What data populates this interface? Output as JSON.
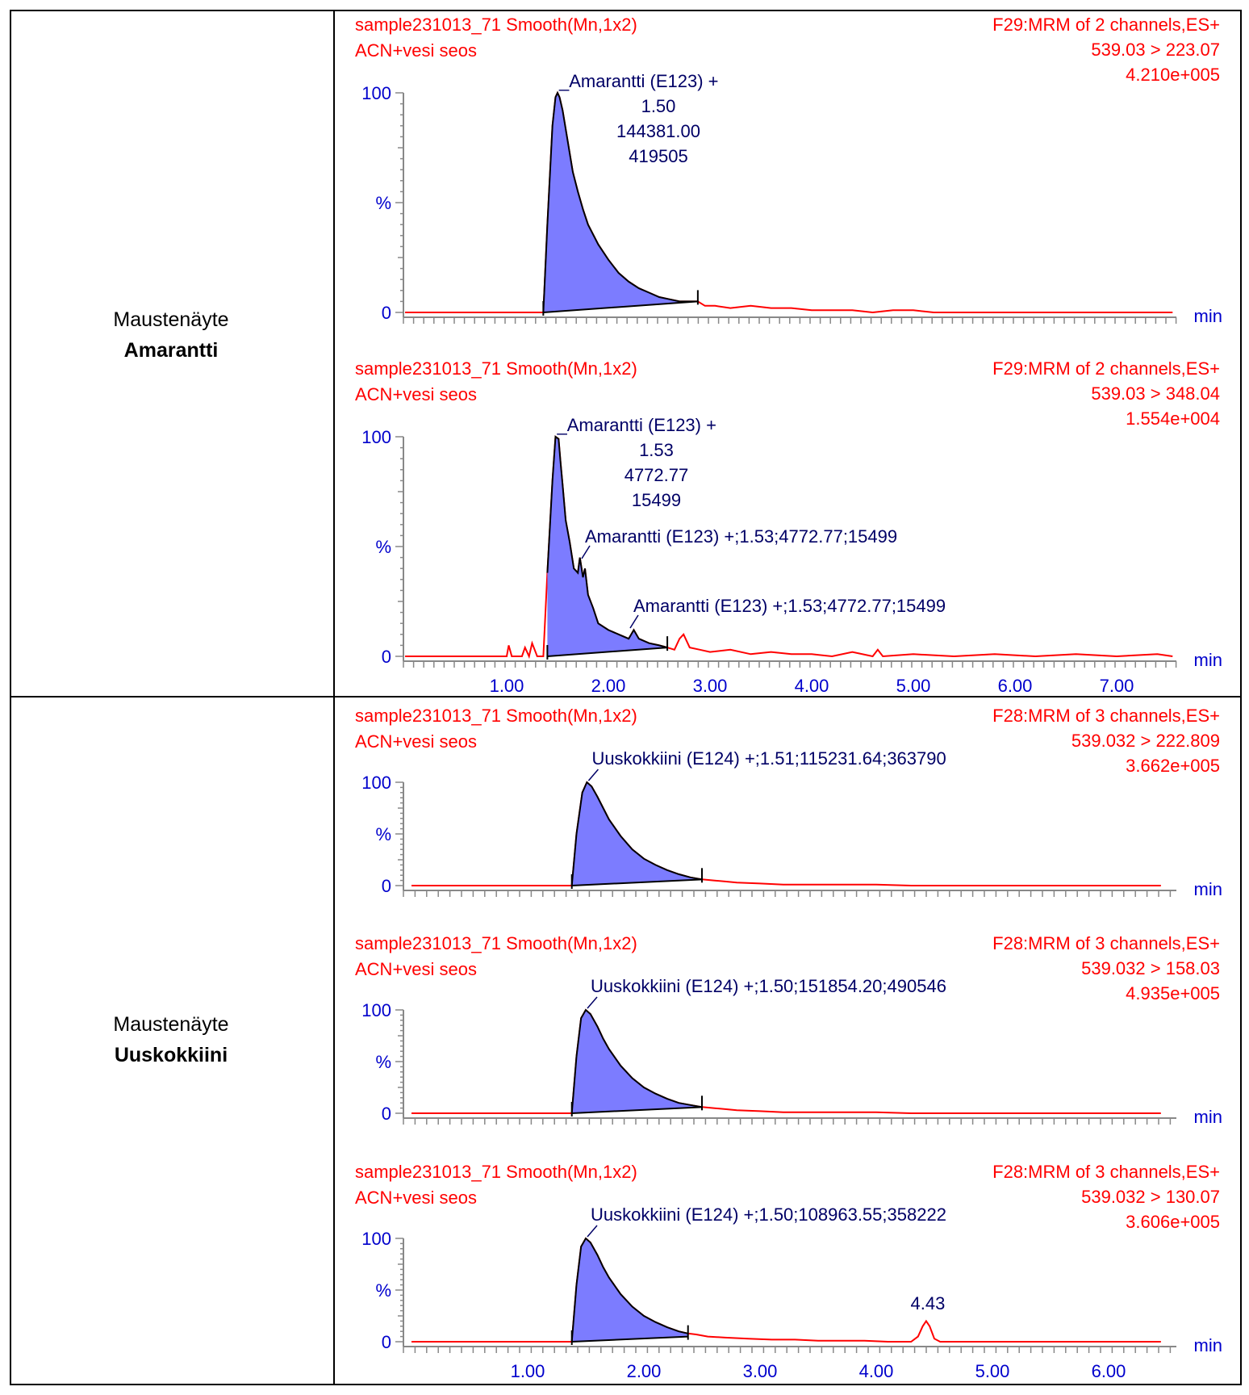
{
  "rows": [
    {
      "line1": "Maustenäyte",
      "line2": "Amarantti"
    },
    {
      "line1": "Maustenäyte",
      "line2": "Uuskokkiini"
    }
  ],
  "chart_data": [
    {
      "type": "line",
      "title": "sample231013_71 Smooth(Mn,1x2)",
      "subtitle": "ACN+vesi seos",
      "function": "F29:MRM of 2 channels,ES+",
      "transition": "539.03 > 223.07",
      "intensity": "4.210e+005",
      "ylabel": "%",
      "yticks": [
        "0",
        "100"
      ],
      "xlabel": "min",
      "xlim": [
        0,
        7.6
      ],
      "ylim": [
        0,
        100
      ],
      "xticks": [],
      "peak_label": [
        "_Amarantti (E123) +",
        "1.50",
        "144381.00",
        "419505"
      ],
      "extra_labels": [],
      "peak_area": {
        "start": 1.36,
        "end": 2.88,
        "base_start": 0,
        "base_end": 5
      },
      "series": [
        {
          "x": [
            0,
            1.3,
            1.36,
            1.4,
            1.45,
            1.48,
            1.5,
            1.52,
            1.55,
            1.6,
            1.65,
            1.7,
            1.75,
            1.8,
            1.9,
            2.0,
            2.1,
            2.2,
            2.3,
            2.4,
            2.5,
            2.6,
            2.7,
            2.8,
            2.88,
            2.95,
            3.05,
            3.2,
            3.4,
            3.6,
            3.8,
            4.0,
            4.2,
            4.4,
            4.6,
            4.8,
            5.0,
            5.2,
            5.4,
            5.6,
            6.0,
            6.4,
            6.8,
            7.2,
            7.55
          ],
          "y": [
            0,
            0,
            0,
            40,
            85,
            98,
            100,
            98,
            92,
            78,
            64,
            55,
            47,
            40,
            31,
            24,
            18,
            14,
            11,
            9,
            7,
            6,
            5,
            5,
            5,
            3,
            3,
            2,
            3,
            2,
            2,
            1,
            1,
            1,
            0,
            1,
            1,
            0,
            0,
            0,
            0,
            0,
            0,
            0,
            0
          ]
        }
      ]
    },
    {
      "type": "line",
      "title": "sample231013_71 Smooth(Mn,1x2)",
      "subtitle": "ACN+vesi seos",
      "function": "F29:MRM of 2 channels,ES+",
      "transition": "539.03 > 348.04",
      "intensity": "1.554e+004",
      "ylabel": "%",
      "yticks": [
        "0",
        "100"
      ],
      "xlabel": "min",
      "xlim": [
        0,
        7.6
      ],
      "ylim": [
        0,
        100
      ],
      "xticks": [
        "1.00",
        "2.00",
        "3.00",
        "4.00",
        "5.00",
        "6.00",
        "7.00"
      ],
      "peak_label": [
        "_Amarantti (E123) +",
        "1.53",
        "4772.77",
        "15499"
      ],
      "extra_labels": [
        "Amarantti (E123) +;1.53;4772.77;15499",
        "Amarantti (E123) +;1.53;4772.77;15499"
      ],
      "peak_area": {
        "start": 1.4,
        "end": 2.58,
        "base_start": 0,
        "base_end": 4
      },
      "series": [
        {
          "x": [
            0,
            1.0,
            1.02,
            1.05,
            1.15,
            1.18,
            1.22,
            1.25,
            1.3,
            1.36,
            1.4,
            1.45,
            1.48,
            1.51,
            1.53,
            1.55,
            1.58,
            1.62,
            1.66,
            1.7,
            1.72,
            1.75,
            1.77,
            1.8,
            1.85,
            1.9,
            2.0,
            2.1,
            2.2,
            2.25,
            2.3,
            2.4,
            2.5,
            2.58,
            2.65,
            2.7,
            2.74,
            2.8,
            2.9,
            3.0,
            3.2,
            3.4,
            3.6,
            3.8,
            4.0,
            4.2,
            4.4,
            4.6,
            4.65,
            4.7,
            5.0,
            5.4,
            5.8,
            6.2,
            6.6,
            7.0,
            7.4,
            7.55
          ],
          "y": [
            0,
            0,
            5,
            0,
            0,
            4,
            0,
            6,
            0,
            0,
            38,
            80,
            100,
            99,
            88,
            78,
            62,
            52,
            40,
            38,
            45,
            36,
            40,
            28,
            22,
            15,
            12,
            10,
            8,
            12,
            8,
            6,
            5,
            4,
            3,
            8,
            10,
            4,
            3,
            2,
            3,
            1,
            2,
            1,
            1,
            0,
            2,
            0,
            3,
            0,
            1,
            0,
            1,
            0,
            1,
            0,
            1,
            0
          ]
        }
      ]
    },
    {
      "type": "line",
      "title": "sample231013_71 Smooth(Mn,1x2)",
      "subtitle": "ACN+vesi seos",
      "function": "F28:MRM of 3 channels,ES+",
      "transition": "539.032 > 222.809",
      "intensity": "3.662e+005",
      "ylabel": "%",
      "yticks": [
        "0",
        "100"
      ],
      "xlabel": "min",
      "xlim": [
        0,
        6.5
      ],
      "ylim": [
        0,
        100
      ],
      "xticks": [],
      "peak_label": [
        "Uuskokkiini (E124) +;1.51;115231.64;363790"
      ],
      "extra_labels": [],
      "peak_area": {
        "start": 1.38,
        "end": 2.5,
        "base_start": 0,
        "base_end": 6
      },
      "series": [
        {
          "x": [
            0,
            1.3,
            1.38,
            1.42,
            1.47,
            1.51,
            1.55,
            1.6,
            1.65,
            1.7,
            1.8,
            1.9,
            2.0,
            2.1,
            2.2,
            2.3,
            2.4,
            2.5,
            2.6,
            2.7,
            2.8,
            3.0,
            3.2,
            3.4,
            3.6,
            3.8,
            4.0,
            4.3,
            4.6,
            5.0,
            5.5,
            6.0,
            6.45
          ],
          "y": [
            0,
            0,
            0,
            50,
            90,
            100,
            96,
            86,
            75,
            64,
            48,
            35,
            26,
            20,
            15,
            11,
            8,
            6,
            5,
            4,
            3,
            2,
            1,
            1,
            1,
            1,
            1,
            0,
            0,
            0,
            0,
            0,
            0
          ]
        }
      ]
    },
    {
      "type": "line",
      "title": "sample231013_71 Smooth(Mn,1x2)",
      "subtitle": "ACN+vesi seos",
      "function": "F28:MRM of 3 channels,ES+",
      "transition": "539.032 > 158.03",
      "intensity": "4.935e+005",
      "ylabel": "%",
      "yticks": [
        "0",
        "100"
      ],
      "xlabel": "min",
      "xlim": [
        0,
        6.5
      ],
      "ylim": [
        0,
        100
      ],
      "xticks": [],
      "peak_label": [
        "Uuskokkiini (E124) +;1.50;151854.20;490546"
      ],
      "extra_labels": [],
      "peak_area": {
        "start": 1.38,
        "end": 2.5,
        "base_start": 0,
        "base_end": 6
      },
      "series": [
        {
          "x": [
            0,
            1.3,
            1.38,
            1.42,
            1.46,
            1.5,
            1.54,
            1.6,
            1.65,
            1.7,
            1.8,
            1.9,
            2.0,
            2.1,
            2.2,
            2.3,
            2.4,
            2.5,
            2.6,
            2.7,
            2.8,
            3.0,
            3.2,
            3.4,
            3.6,
            3.8,
            4.0,
            4.3,
            4.6,
            5.0,
            5.5,
            6.0,
            6.45
          ],
          "y": [
            0,
            0,
            0,
            55,
            92,
            100,
            96,
            84,
            72,
            62,
            46,
            34,
            25,
            19,
            14,
            10,
            8,
            6,
            5,
            4,
            3,
            2,
            1,
            1,
            1,
            1,
            1,
            0,
            0,
            0,
            0,
            0,
            0
          ]
        }
      ]
    },
    {
      "type": "line",
      "title": "sample231013_71 Smooth(Mn,1x2)",
      "subtitle": "ACN+vesi seos",
      "function": "F28:MRM of 3 channels,ES+",
      "transition": "539.032 > 130.07",
      "intensity": "3.606e+005",
      "ylabel": "%",
      "yticks": [
        "0",
        "100"
      ],
      "xlabel": "min",
      "xlim": [
        0,
        6.5
      ],
      "ylim": [
        0,
        100
      ],
      "xticks": [
        "1.00",
        "2.00",
        "3.00",
        "4.00",
        "5.00",
        "6.00"
      ],
      "peak_label": [
        "Uuskokkiini (E124) +;1.50;108963.55;358222"
      ],
      "extra_labels": [
        "4.43"
      ],
      "peak_area": {
        "start": 1.38,
        "end": 2.38,
        "base_start": 0,
        "base_end": 5
      },
      "series": [
        {
          "x": [
            0,
            1.3,
            1.38,
            1.42,
            1.46,
            1.5,
            1.54,
            1.6,
            1.65,
            1.7,
            1.8,
            1.9,
            2.0,
            2.1,
            2.2,
            2.3,
            2.38,
            2.45,
            2.55,
            2.7,
            2.9,
            3.1,
            3.3,
            3.5,
            3.7,
            3.9,
            4.1,
            4.3,
            4.36,
            4.4,
            4.43,
            4.46,
            4.5,
            4.55,
            4.7,
            5.0,
            5.5,
            6.0,
            6.45
          ],
          "y": [
            0,
            0,
            0,
            55,
            92,
            100,
            96,
            84,
            72,
            62,
            46,
            34,
            25,
            19,
            14,
            10,
            8,
            7,
            5,
            4,
            3,
            2,
            2,
            1,
            1,
            1,
            0,
            0,
            5,
            15,
            20,
            15,
            3,
            0,
            0,
            0,
            0,
            0,
            0
          ]
        }
      ]
    }
  ]
}
